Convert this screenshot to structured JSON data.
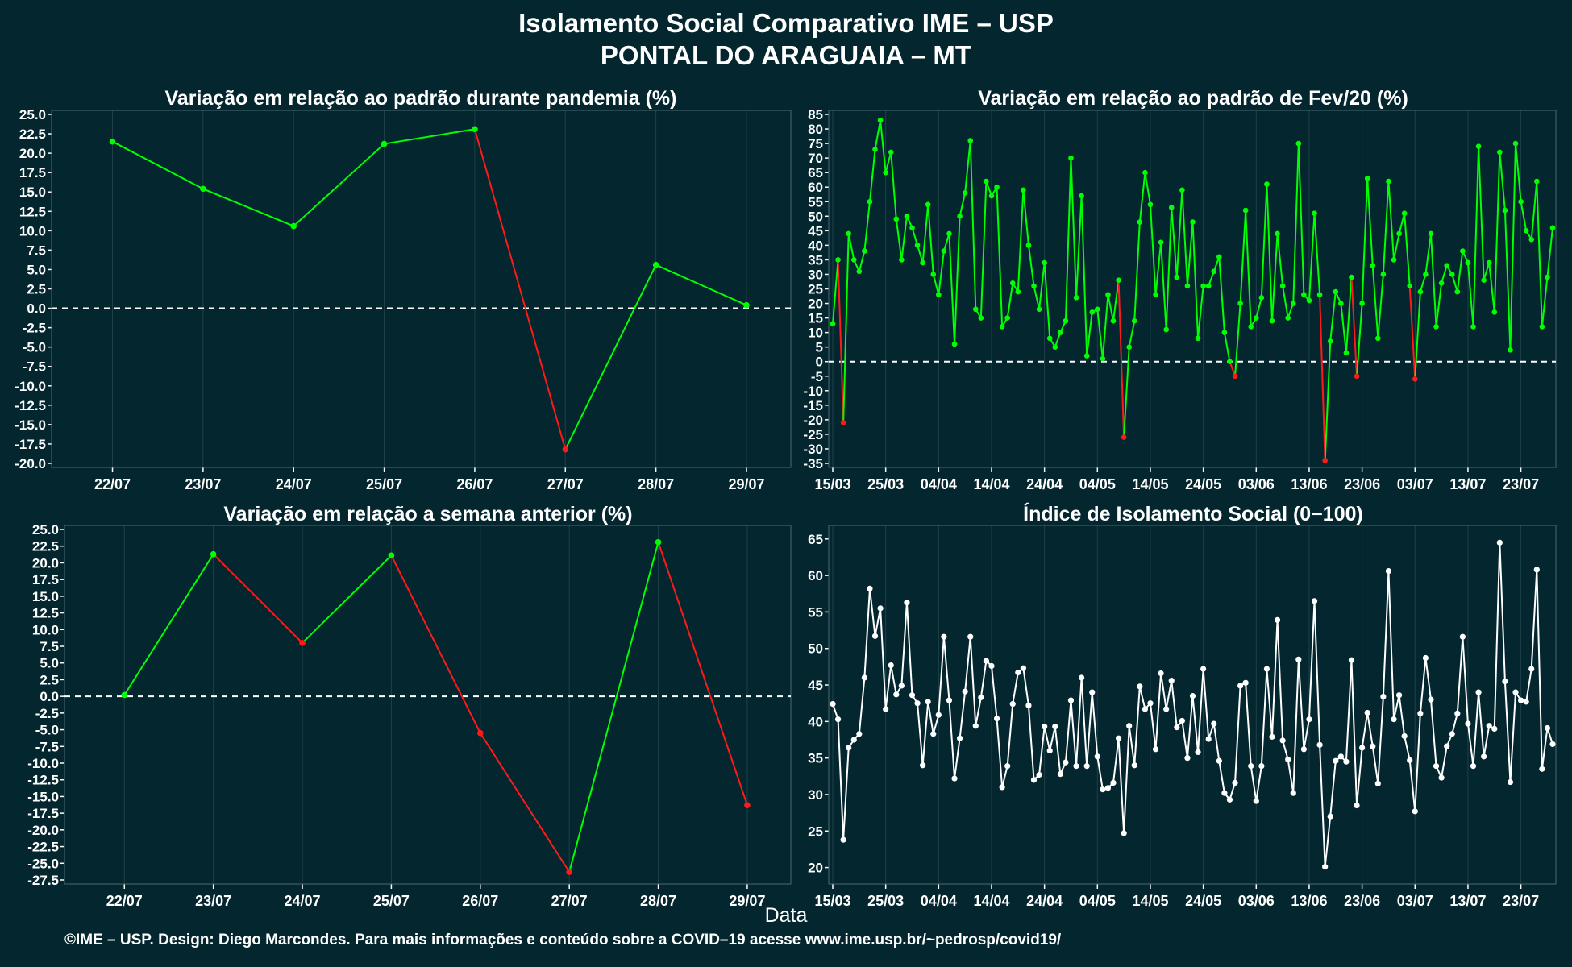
{
  "header": {
    "title_line1": "Isolamento Social Comparativo IME – USP",
    "title_line2": "PONTAL DO ARAGUAIA – MT"
  },
  "x_axis_label": "Data",
  "footer": "©IME – USP. Design: Diego Marcondes. Para mais informações e conteúdo sobre a COVID–19 acesse www.ime.usp.br/~pedrosp/covid19/",
  "colors": {
    "background": "#04262f",
    "positive": "#00ff00",
    "negative": "#ff1a1a",
    "index_line": "#ffffff",
    "grid": "#1e4048"
  },
  "chart_data": [
    {
      "id": "pandemic",
      "type": "line",
      "title": "Variação em relação ao padrão durante pandemia (%)",
      "categories": [
        "22/07",
        "23/07",
        "24/07",
        "25/07",
        "26/07",
        "27/07",
        "28/07",
        "29/07"
      ],
      "values": [
        21.5,
        15.4,
        10.6,
        21.2,
        23.1,
        -18.2,
        5.6,
        0.4
      ],
      "ylim": [
        -20,
        25
      ],
      "yticks": [
        25,
        22.5,
        20,
        17.5,
        15,
        12.5,
        10,
        7.5,
        5,
        2.5,
        0,
        -2.5,
        -5,
        -7.5,
        -10,
        -12.5,
        -15,
        -17.5,
        -20
      ],
      "reference_line": 0,
      "color_rule": "green when value and next are non-negative, red when segment ends below zero"
    },
    {
      "id": "feb",
      "type": "line",
      "title": "Variação em relação ao padrão de Fev/20 (%)",
      "start_date": "15/03",
      "xticks": [
        "15/03",
        "25/03",
        "04/04",
        "14/04",
        "24/04",
        "04/05",
        "14/05",
        "24/05",
        "03/06",
        "13/06",
        "23/06",
        "03/07",
        "13/07",
        "23/07"
      ],
      "values": [
        13,
        35,
        -21,
        44,
        35,
        31,
        38,
        55,
        73,
        83,
        65,
        72,
        49,
        35,
        50,
        46,
        40,
        34,
        54,
        30,
        23,
        38,
        44,
        6,
        50,
        58,
        76,
        18,
        15,
        62,
        57,
        60,
        12,
        15,
        27,
        24,
        59,
        40,
        26,
        18,
        34,
        8,
        5,
        10,
        14,
        70,
        22,
        57,
        2,
        17,
        18,
        1,
        23,
        14,
        28,
        -26,
        5,
        14,
        48,
        65,
        54,
        23,
        41,
        11,
        53,
        29,
        59,
        26,
        48,
        8,
        26,
        26,
        31,
        36,
        10,
        0,
        -5,
        20,
        52,
        12,
        15,
        22,
        61,
        14,
        44,
        26,
        15,
        20,
        75,
        23,
        21,
        51,
        23,
        -34,
        7,
        24,
        20,
        3,
        29,
        -5,
        20,
        63,
        33,
        8,
        30,
        62,
        35,
        44,
        51,
        26,
        -6,
        24,
        30,
        44,
        12,
        27,
        33,
        30,
        24,
        38,
        34,
        12,
        74,
        28,
        34,
        17,
        72,
        52,
        4,
        75,
        55,
        45,
        42,
        62,
        12,
        29,
        46
      ],
      "ylim": [
        -35,
        85
      ],
      "yticks": [
        85,
        80,
        75,
        70,
        65,
        60,
        55,
        50,
        45,
        40,
        35,
        30,
        25,
        20,
        15,
        10,
        5,
        0,
        -5,
        -10,
        -15,
        -20,
        -25,
        -30,
        -35
      ],
      "reference_line": 0
    },
    {
      "id": "week",
      "type": "line",
      "title": "Variação em relação a semana anterior (%)",
      "categories": [
        "22/07",
        "23/07",
        "24/07",
        "25/07",
        "26/07",
        "27/07",
        "28/07",
        "29/07"
      ],
      "values": [
        0.2,
        21.3,
        8.0,
        21.1,
        -5.5,
        -26.3,
        23.1,
        -16.3
      ],
      "ylim": [
        -27.5,
        25
      ],
      "yticks": [
        25,
        22.5,
        20,
        17.5,
        15,
        12.5,
        10,
        7.5,
        5,
        2.5,
        0,
        -2.5,
        -5,
        -7.5,
        -10,
        -12.5,
        -15,
        -17.5,
        -20,
        -22.5,
        -25,
        -27.5
      ],
      "reference_line": 0,
      "color_rule": "green when segment rises, red when segment falls"
    },
    {
      "id": "index",
      "type": "line",
      "title": "Índice de Isolamento Social (0−100)",
      "start_date": "15/03",
      "xticks": [
        "15/03",
        "25/03",
        "04/04",
        "14/04",
        "24/04",
        "04/05",
        "14/05",
        "24/05",
        "03/06",
        "13/06",
        "23/06",
        "03/07",
        "13/07",
        "23/07"
      ],
      "values": [
        42.4,
        40.3,
        23.8,
        36.4,
        37.5,
        38.3,
        46.0,
        58.2,
        51.7,
        55.5,
        41.7,
        47.7,
        43.7,
        44.9,
        56.3,
        43.6,
        42.5,
        34.0,
        42.7,
        38.3,
        40.9,
        51.6,
        42.9,
        32.2,
        37.7,
        44.1,
        51.6,
        39.4,
        43.3,
        48.3,
        47.6,
        40.4,
        31.0,
        33.9,
        42.4,
        46.7,
        47.3,
        42.2,
        32.0,
        32.7,
        39.3,
        36.0,
        39.3,
        32.8,
        34.4,
        42.9,
        33.9,
        46.0,
        33.9,
        44.0,
        35.2,
        30.7,
        30.9,
        31.6,
        37.7,
        24.7,
        39.4,
        34.0,
        44.8,
        41.7,
        42.5,
        36.2,
        46.6,
        41.7,
        45.6,
        39.2,
        40.1,
        35.0,
        43.5,
        35.8,
        47.2,
        37.6,
        39.7,
        34.6,
        30.2,
        29.3,
        31.6,
        44.9,
        45.3,
        33.9,
        29.1,
        33.9,
        47.2,
        37.9,
        53.9,
        37.4,
        34.8,
        30.2,
        48.5,
        36.2,
        40.3,
        56.5,
        36.8,
        20.1,
        27.0,
        34.6,
        35.2,
        34.5,
        48.4,
        28.5,
        36.4,
        41.2,
        36.6,
        31.5,
        43.4,
        60.6,
        40.3,
        43.6,
        38.0,
        34.7,
        27.7,
        41.1,
        48.7,
        43.0,
        33.9,
        32.3,
        36.6,
        38.3,
        41.1,
        51.6,
        39.7,
        33.9,
        44.0,
        35.2,
        39.4,
        39.0,
        64.5,
        45.5,
        31.7,
        44.0,
        42.9,
        42.7,
        47.2,
        60.8,
        33.5,
        39.1,
        36.9
      ],
      "ylim": [
        18.3,
        66.3
      ],
      "yticks": [
        65,
        60,
        55,
        50,
        45,
        40,
        35,
        30,
        25,
        20
      ]
    }
  ]
}
